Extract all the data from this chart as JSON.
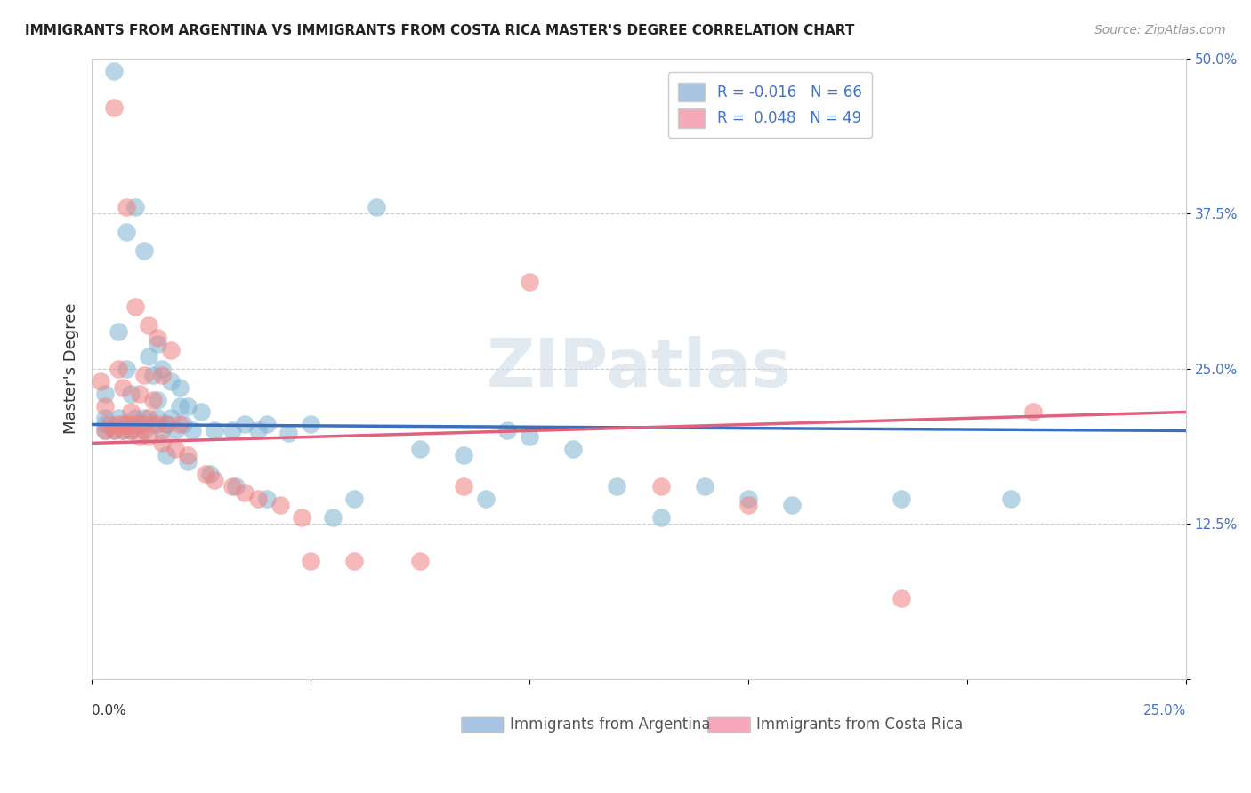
{
  "title": "IMMIGRANTS FROM ARGENTINA VS IMMIGRANTS FROM COSTA RICA MASTER'S DEGREE CORRELATION CHART",
  "source": "Source: ZipAtlas.com",
  "ylabel": "Master's Degree",
  "yticks": [
    0.0,
    0.125,
    0.25,
    0.375,
    0.5
  ],
  "ytick_labels": [
    "",
    "12.5%",
    "25.0%",
    "37.5%",
    "50.0%"
  ],
  "xticks": [
    0.0,
    0.05,
    0.1,
    0.15,
    0.2,
    0.25
  ],
  "xlim": [
    0.0,
    0.25
  ],
  "ylim": [
    0.0,
    0.5
  ],
  "legend_label_argentina": "Immigrants from Argentina",
  "legend_label_costarica": "Immigrants from Costa Rica",
  "argentina_color": "#7fb3d3",
  "costarica_color": "#f08080",
  "blue_line_color": "#3a6fbf",
  "pink_line_color": "#e06080",
  "legend_blue_color": "#a8c4e0",
  "legend_pink_color": "#f4a8b8",
  "watermark_color": "#d0dce8",
  "background_color": "#ffffff",
  "grid_color": "#cccccc",
  "axis_color": "#cccccc",
  "argentina_points": [
    [
      0.005,
      0.49
    ],
    [
      0.01,
      0.38
    ],
    [
      0.008,
      0.36
    ],
    [
      0.012,
      0.345
    ],
    [
      0.006,
      0.28
    ],
    [
      0.015,
      0.27
    ],
    [
      0.013,
      0.26
    ],
    [
      0.008,
      0.25
    ],
    [
      0.016,
      0.25
    ],
    [
      0.014,
      0.245
    ],
    [
      0.018,
      0.24
    ],
    [
      0.02,
      0.235
    ],
    [
      0.003,
      0.23
    ],
    [
      0.009,
      0.23
    ],
    [
      0.015,
      0.225
    ],
    [
      0.02,
      0.22
    ],
    [
      0.022,
      0.22
    ],
    [
      0.025,
      0.215
    ],
    [
      0.003,
      0.21
    ],
    [
      0.006,
      0.21
    ],
    [
      0.01,
      0.21
    ],
    [
      0.012,
      0.21
    ],
    [
      0.015,
      0.21
    ],
    [
      0.018,
      0.21
    ],
    [
      0.003,
      0.205
    ],
    [
      0.007,
      0.205
    ],
    [
      0.011,
      0.205
    ],
    [
      0.014,
      0.205
    ],
    [
      0.017,
      0.205
    ],
    [
      0.021,
      0.205
    ],
    [
      0.035,
      0.205
    ],
    [
      0.04,
      0.205
    ],
    [
      0.003,
      0.2
    ],
    [
      0.005,
      0.2
    ],
    [
      0.007,
      0.2
    ],
    [
      0.009,
      0.2
    ],
    [
      0.012,
      0.2
    ],
    [
      0.016,
      0.2
    ],
    [
      0.019,
      0.2
    ],
    [
      0.023,
      0.2
    ],
    [
      0.028,
      0.2
    ],
    [
      0.032,
      0.2
    ],
    [
      0.038,
      0.2
    ],
    [
      0.045,
      0.198
    ],
    [
      0.05,
      0.205
    ],
    [
      0.065,
      0.38
    ],
    [
      0.075,
      0.185
    ],
    [
      0.085,
      0.18
    ],
    [
      0.09,
      0.145
    ],
    [
      0.095,
      0.2
    ],
    [
      0.1,
      0.195
    ],
    [
      0.11,
      0.185
    ],
    [
      0.12,
      0.155
    ],
    [
      0.13,
      0.13
    ],
    [
      0.14,
      0.155
    ],
    [
      0.15,
      0.145
    ],
    [
      0.16,
      0.14
    ],
    [
      0.017,
      0.18
    ],
    [
      0.022,
      0.175
    ],
    [
      0.027,
      0.165
    ],
    [
      0.033,
      0.155
    ],
    [
      0.04,
      0.145
    ],
    [
      0.055,
      0.13
    ],
    [
      0.06,
      0.145
    ],
    [
      0.185,
      0.145
    ],
    [
      0.21,
      0.145
    ]
  ],
  "costarica_points": [
    [
      0.005,
      0.46
    ],
    [
      0.008,
      0.38
    ],
    [
      0.01,
      0.3
    ],
    [
      0.013,
      0.285
    ],
    [
      0.015,
      0.275
    ],
    [
      0.018,
      0.265
    ],
    [
      0.006,
      0.25
    ],
    [
      0.012,
      0.245
    ],
    [
      0.016,
      0.245
    ],
    [
      0.002,
      0.24
    ],
    [
      0.007,
      0.235
    ],
    [
      0.011,
      0.23
    ],
    [
      0.014,
      0.225
    ],
    [
      0.003,
      0.22
    ],
    [
      0.009,
      0.215
    ],
    [
      0.013,
      0.21
    ],
    [
      0.004,
      0.205
    ],
    [
      0.006,
      0.205
    ],
    [
      0.008,
      0.205
    ],
    [
      0.01,
      0.205
    ],
    [
      0.012,
      0.205
    ],
    [
      0.015,
      0.205
    ],
    [
      0.017,
      0.205
    ],
    [
      0.02,
      0.205
    ],
    [
      0.003,
      0.2
    ],
    [
      0.005,
      0.2
    ],
    [
      0.007,
      0.2
    ],
    [
      0.009,
      0.2
    ],
    [
      0.011,
      0.195
    ],
    [
      0.013,
      0.195
    ],
    [
      0.016,
      0.19
    ],
    [
      0.019,
      0.185
    ],
    [
      0.022,
      0.18
    ],
    [
      0.026,
      0.165
    ],
    [
      0.028,
      0.16
    ],
    [
      0.032,
      0.155
    ],
    [
      0.035,
      0.15
    ],
    [
      0.038,
      0.145
    ],
    [
      0.043,
      0.14
    ],
    [
      0.048,
      0.13
    ],
    [
      0.05,
      0.095
    ],
    [
      0.06,
      0.095
    ],
    [
      0.075,
      0.095
    ],
    [
      0.085,
      0.155
    ],
    [
      0.1,
      0.32
    ],
    [
      0.13,
      0.155
    ],
    [
      0.15,
      0.14
    ],
    [
      0.185,
      0.065
    ],
    [
      0.215,
      0.215
    ]
  ],
  "arg_line": [
    0.205,
    0.2
  ],
  "cr_line": [
    0.19,
    0.215
  ]
}
